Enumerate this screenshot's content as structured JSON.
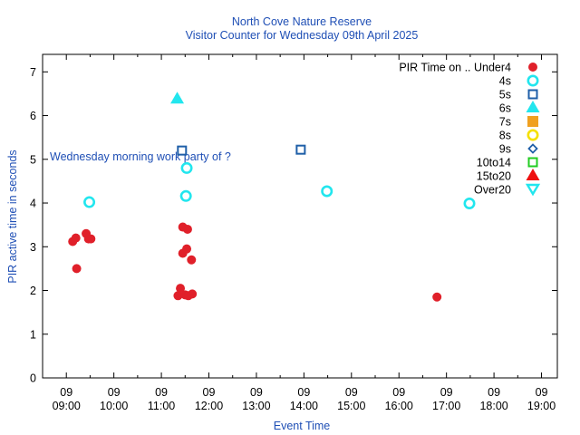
{
  "chart_data": {
    "type": "scatter",
    "title": "North Cove Nature Reserve",
    "subtitle": "Visitor Counter for Wednesday 09th April 2025",
    "xlabel": "Event Time",
    "ylabel": "PIR active time in seconds",
    "annotation": "Wednesday morning work party of ?",
    "legend_title": "PIR Time on .. Under4",
    "legend_position": "top-right",
    "x_range": [
      "08:30",
      "19:20"
    ],
    "ylim": [
      0,
      7.4
    ],
    "x_ticks": [
      {
        "time": "09:00",
        "day": "09",
        "label": "09:00"
      },
      {
        "time": "10:00",
        "day": "09",
        "label": "10:00"
      },
      {
        "time": "11:00",
        "day": "09",
        "label": "11:00"
      },
      {
        "time": "12:00",
        "day": "09",
        "label": "12:00"
      },
      {
        "time": "13:00",
        "day": "09",
        "label": "13:00"
      },
      {
        "time": "14:00",
        "day": "09",
        "label": "14:00"
      },
      {
        "time": "15:00",
        "day": "09",
        "label": "15:00"
      },
      {
        "time": "16:00",
        "day": "09",
        "label": "16:00"
      },
      {
        "time": "17:00",
        "day": "09",
        "label": "17:00"
      },
      {
        "time": "18:00",
        "day": "09",
        "label": "18:00"
      },
      {
        "time": "19:00",
        "day": "09",
        "label": "19:00"
      }
    ],
    "y_ticks": [
      "0",
      "1",
      "2",
      "3",
      "4",
      "5",
      "6",
      "7"
    ],
    "series": [
      {
        "name": "Under4",
        "label": "PIR Time on .. Under4",
        "marker": "filled-circle",
        "color": "#e0202a",
        "points": [
          {
            "x": "09:08",
            "y": 3.12
          },
          {
            "x": "09:12",
            "y": 3.2
          },
          {
            "x": "09:13",
            "y": 2.5
          },
          {
            "x": "09:25",
            "y": 3.3
          },
          {
            "x": "09:28",
            "y": 3.18
          },
          {
            "x": "09:31",
            "y": 3.18
          },
          {
            "x": "11:21",
            "y": 1.88
          },
          {
            "x": "11:24",
            "y": 2.05
          },
          {
            "x": "11:27",
            "y": 2.85
          },
          {
            "x": "11:27",
            "y": 3.45
          },
          {
            "x": "11:30",
            "y": 1.9
          },
          {
            "x": "11:32",
            "y": 2.95
          },
          {
            "x": "11:33",
            "y": 3.4
          },
          {
            "x": "11:34",
            "y": 1.88
          },
          {
            "x": "11:38",
            "y": 2.7
          },
          {
            "x": "11:39",
            "y": 1.92
          },
          {
            "x": "16:48",
            "y": 1.85
          }
        ]
      },
      {
        "name": "4s",
        "label": "4s",
        "marker": "open-circle",
        "color": "#22e6ee",
        "points": [
          {
            "x": "09:29",
            "y": 4.02
          },
          {
            "x": "11:31",
            "y": 4.16
          },
          {
            "x": "11:32",
            "y": 4.8
          },
          {
            "x": "14:29",
            "y": 4.27
          },
          {
            "x": "17:29",
            "y": 3.99
          }
        ]
      },
      {
        "name": "5s",
        "label": "5s",
        "marker": "open-square",
        "color": "#1f5fa8",
        "points": [
          {
            "x": "11:26",
            "y": 5.2
          },
          {
            "x": "13:56",
            "y": 5.22
          }
        ]
      },
      {
        "name": "6s",
        "label": "6s",
        "marker": "filled-triangle",
        "color": "#22e6ee",
        "points": [
          {
            "x": "11:20",
            "y": 6.38
          }
        ]
      },
      {
        "name": "7s",
        "label": "7s",
        "marker": "filled-square",
        "color": "#f0a020",
        "points": []
      },
      {
        "name": "8s",
        "label": "8s",
        "marker": "open-circle",
        "color": "#f5e000",
        "points": []
      },
      {
        "name": "9s",
        "label": "9s",
        "marker": "open-diamond",
        "color": "#1f5fa8",
        "points": []
      },
      {
        "name": "10to14",
        "label": "10to14",
        "marker": "open-square",
        "color": "#22cc22",
        "points": []
      },
      {
        "name": "15to20",
        "label": "15to20",
        "marker": "filled-triangle",
        "color": "#ee1010",
        "points": []
      },
      {
        "name": "Over20",
        "label": "Over20",
        "marker": "open-triangle-down",
        "color": "#22e6ee",
        "points": []
      }
    ]
  }
}
